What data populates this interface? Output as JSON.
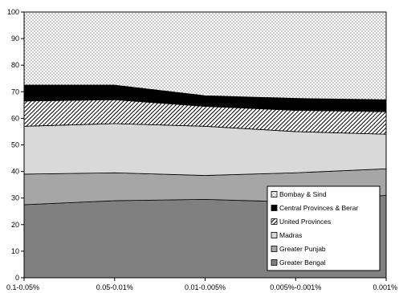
{
  "chart_data": {
    "type": "area",
    "stacked": true,
    "categories": [
      "0.1-0.05%",
      "0.05-0.01%",
      "0.01-0.005%",
      "0.005%-0.001%",
      "0.001%"
    ],
    "ylim": [
      0,
      100
    ],
    "yticks": [
      0,
      10,
      20,
      30,
      40,
      50,
      60,
      70,
      80,
      90,
      100
    ],
    "grid": false,
    "legend_position": "bottom-right",
    "series": [
      {
        "name": "Greater Bengal",
        "values": [
          27.5,
          29.0,
          29.5,
          28.5,
          31.0
        ],
        "color": "#808080",
        "pattern": "solid"
      },
      {
        "name": "Greater Punjab",
        "values": [
          11.5,
          10.5,
          9.0,
          11.0,
          10.0
        ],
        "color": "#a6a6a6",
        "pattern": "solid"
      },
      {
        "name": "Madras",
        "values": [
          18.0,
          18.5,
          18.5,
          15.5,
          13.0
        ],
        "color": "#d9d9d9",
        "pattern": "solid"
      },
      {
        "name": "United Provinces",
        "values": [
          9.5,
          9.0,
          7.5,
          8.0,
          8.5
        ],
        "color": "#ffffff",
        "pattern": "diagonal"
      },
      {
        "name": "Central Provinces & Berar",
        "values": [
          6.0,
          5.5,
          4.0,
          4.5,
          4.5
        ],
        "color": "#000000",
        "pattern": "solid"
      },
      {
        "name": "Bombay & Sind",
        "values": [
          27.5,
          27.5,
          31.5,
          32.5,
          33.0
        ],
        "color": "#ffffff",
        "pattern": "dots"
      }
    ],
    "legend_order": [
      "Bombay & Sind",
      "Central Provinces & Berar",
      "United Provinces",
      "Madras",
      "Greater Punjab",
      "Greater Bengal"
    ]
  }
}
